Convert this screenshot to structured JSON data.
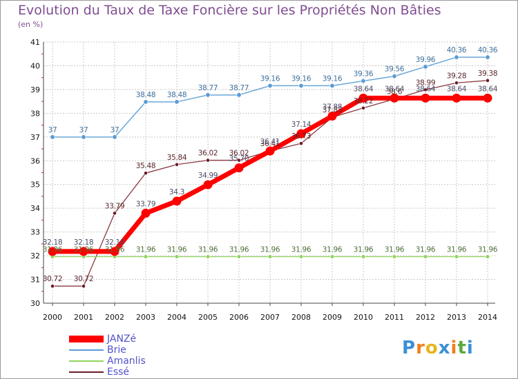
{
  "title": "Evolution du Taux de Taxe Foncière sur les Propriétés Non Bâties",
  "unit_label": "(en %)",
  "logo": {
    "text": "Proxiti",
    "letters": [
      "P",
      "r",
      "o",
      "x",
      "i",
      "t",
      "i"
    ],
    "colors": [
      "#3b8fd6",
      "#f07f1d",
      "#e8b51e",
      "#3b8fd6",
      "#f07f1d",
      "#5caa3a",
      "#3b8fd6"
    ]
  },
  "chart_data": {
    "type": "line",
    "title": "Evolution du Taux de Taxe Foncière sur les Propriétés Non Bâties",
    "ylabel": "(en %)",
    "xlabel": "",
    "ylim": [
      30,
      41
    ],
    "y_ticks": [
      30,
      31,
      32,
      33,
      34,
      35,
      36,
      37,
      38,
      39,
      40,
      41
    ],
    "y_tick_labels": [
      "30",
      "31",
      "32",
      "33",
      "34",
      "35",
      "36",
      "37",
      "38",
      "39",
      "40",
      "41"
    ],
    "x": [
      "2000",
      "2001",
      "2002",
      "2003",
      "2004",
      "2005",
      "2006",
      "2007",
      "2008",
      "2009",
      "2010",
      "2011",
      "2012",
      "2013",
      "2014"
    ],
    "grid": true,
    "series": [
      {
        "name": "Brie",
        "color": "#5b9bd5",
        "values": [
          37,
          37,
          37,
          38.48,
          38.48,
          38.77,
          38.77,
          39.16,
          39.16,
          39.16,
          39.36,
          39.56,
          39.96,
          40.36,
          40.36
        ],
        "labels": [
          "37",
          "37",
          "37",
          "38.48",
          "38.48",
          "38.77",
          "38.77",
          "39.16",
          "39.16",
          "39.16",
          "39.36",
          "39.56",
          "39.96",
          "40.36",
          "40.36"
        ]
      },
      {
        "name": "Essé",
        "color": "#6b1a24",
        "values": [
          30.72,
          30.72,
          33.79,
          35.48,
          35.84,
          36.02,
          36.02,
          36.41,
          36.73,
          37.83,
          38.22,
          38.6,
          38.99,
          39.28,
          39.38
        ],
        "labels": [
          "30.72",
          "30.72",
          "33.79",
          "35.48",
          "35.84",
          "36.02",
          "36.02",
          "36.41",
          "36.73",
          "37.83",
          "38.22",
          "38.6",
          "38.99",
          "39.28",
          "39.38"
        ]
      },
      {
        "name": "Amanlis",
        "color": "#8fd45c",
        "values": [
          31.96,
          31.96,
          31.96,
          31.96,
          31.96,
          31.96,
          31.96,
          31.96,
          31.96,
          31.96,
          31.96,
          31.96,
          31.96,
          31.96,
          31.96
        ],
        "labels": [
          "31.96",
          "31.96",
          "31.96",
          "31.96",
          "31.96",
          "31.96",
          "31.96",
          "31.96",
          "31.96",
          "31.96",
          "31.96",
          "31.96",
          "31.96",
          "31.96",
          "31.96"
        ]
      },
      {
        "name": "JANZé",
        "color": "#ff0000",
        "values": [
          32.18,
          32.18,
          32.18,
          33.79,
          34.3,
          34.99,
          35.7,
          36.41,
          37.14,
          37.88,
          38.64,
          38.64,
          38.64,
          38.64,
          38.64
        ],
        "labels": [
          "32.18",
          "32.18",
          "32.18",
          "33.79",
          "34.3",
          "34.99",
          "35.70",
          "36.41",
          "37.14",
          "37.88",
          "38.64",
          "38.64",
          "38.64",
          "38.64",
          "38.64"
        ]
      }
    ],
    "legend": [
      {
        "name": "JANZé",
        "color": "#ff0000"
      },
      {
        "name": "Brie",
        "color": "#5b9bd5"
      },
      {
        "name": "Amanlis",
        "color": "#8fd45c"
      },
      {
        "name": "Essé",
        "color": "#6b1a24"
      }
    ]
  }
}
